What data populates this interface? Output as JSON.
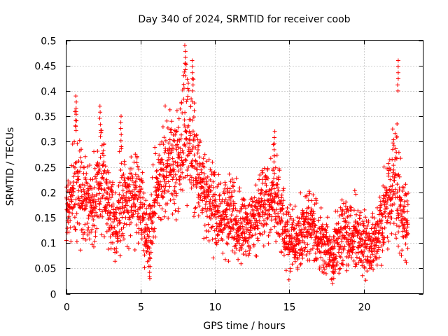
{
  "chart_data": {
    "type": "scatter",
    "title": "Day 340 of 2024, SRMTID for receiver coob",
    "xlabel": "GPS time / hours",
    "ylabel": "SRMTID / TECUs",
    "xlim": [
      0,
      24
    ],
    "ylim": [
      0,
      0.5
    ],
    "xticks": [
      0,
      5,
      10,
      15,
      20
    ],
    "yticks": [
      0,
      0.05,
      0.1,
      0.15,
      0.2,
      0.25,
      0.3,
      0.35,
      0.4,
      0.45,
      0.5
    ],
    "xtick_labels": [
      "0",
      "5",
      "10",
      "15",
      "20"
    ],
    "ytick_labels": [
      "0",
      "0.05",
      "0.1",
      "0.15",
      "0.2",
      "0.25",
      "0.3",
      "0.35",
      "0.4",
      "0.45",
      "0.5"
    ],
    "grid": true,
    "marker": "+",
    "color": "#ff0000",
    "series": [
      {
        "name": "SRMTID",
        "x_range": [
          0,
          23
        ],
        "profile": [
          [
            0.0,
            0.16
          ],
          [
            0.5,
            0.2
          ],
          [
            1.0,
            0.19
          ],
          [
            1.5,
            0.17
          ],
          [
            2.0,
            0.18
          ],
          [
            2.5,
            0.22
          ],
          [
            3.0,
            0.15
          ],
          [
            3.5,
            0.13
          ],
          [
            4.0,
            0.18
          ],
          [
            4.5,
            0.2
          ],
          [
            5.0,
            0.18
          ],
          [
            5.5,
            0.1
          ],
          [
            6.0,
            0.2
          ],
          [
            6.5,
            0.24
          ],
          [
            7.0,
            0.25
          ],
          [
            7.5,
            0.26
          ],
          [
            8.0,
            0.3
          ],
          [
            8.5,
            0.26
          ],
          [
            9.0,
            0.22
          ],
          [
            9.5,
            0.19
          ],
          [
            10.0,
            0.17
          ],
          [
            10.5,
            0.16
          ],
          [
            11.0,
            0.16
          ],
          [
            11.5,
            0.14
          ],
          [
            12.0,
            0.13
          ],
          [
            12.5,
            0.14
          ],
          [
            13.0,
            0.17
          ],
          [
            13.5,
            0.18
          ],
          [
            14.0,
            0.19
          ],
          [
            14.5,
            0.15
          ],
          [
            15.0,
            0.1
          ],
          [
            15.5,
            0.11
          ],
          [
            16.0,
            0.13
          ],
          [
            16.5,
            0.13
          ],
          [
            17.0,
            0.1
          ],
          [
            17.5,
            0.09
          ],
          [
            18.0,
            0.09
          ],
          [
            18.5,
            0.11
          ],
          [
            19.0,
            0.12
          ],
          [
            19.5,
            0.12
          ],
          [
            20.0,
            0.09
          ],
          [
            20.5,
            0.09
          ],
          [
            21.0,
            0.12
          ],
          [
            21.5,
            0.17
          ],
          [
            22.0,
            0.22
          ],
          [
            22.5,
            0.16
          ],
          [
            23.0,
            0.13
          ]
        ],
        "peaks": [
          [
            0.65,
            0.39
          ],
          [
            2.3,
            0.37
          ],
          [
            3.7,
            0.35
          ],
          [
            5.6,
            0.03
          ],
          [
            8.0,
            0.49
          ],
          [
            8.5,
            0.46
          ],
          [
            14.0,
            0.32
          ],
          [
            18.0,
            0.03
          ],
          [
            22.3,
            0.46
          ]
        ]
      }
    ]
  }
}
